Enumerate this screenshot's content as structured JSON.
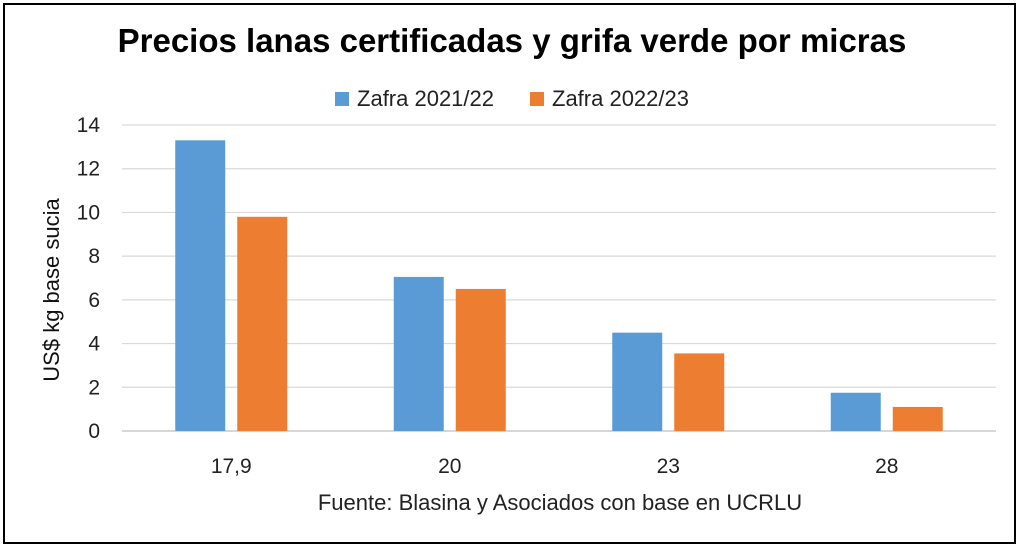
{
  "chart_data": {
    "type": "bar",
    "title": "Precios lanas certificadas y grifa verde por micras",
    "ylabel": "US$ kg base sucia",
    "xlabel": "",
    "source": "Fuente: Blasina y Asociados con base en UCRLU",
    "categories": [
      "17,9",
      "20",
      "23",
      "28"
    ],
    "series": [
      {
        "name": "Zafra 2021/22",
        "color": "#5b9bd5",
        "values": [
          13.3,
          7.05,
          4.5,
          1.75
        ]
      },
      {
        "name": "Zafra 2022/23",
        "color": "#ed7d31",
        "values": [
          9.8,
          6.5,
          3.55,
          1.1
        ]
      }
    ],
    "ylim": [
      0,
      14
    ],
    "yticks": [
      0,
      2,
      4,
      6,
      8,
      10,
      12,
      14
    ],
    "grid": true,
    "legend_position": "top"
  }
}
